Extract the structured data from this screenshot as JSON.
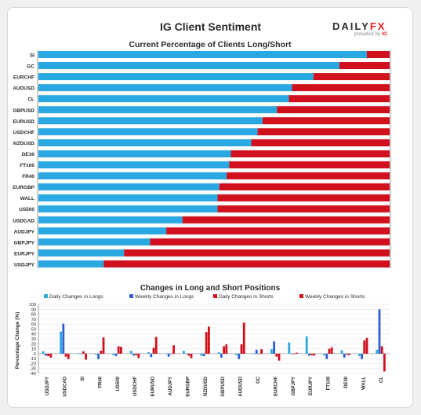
{
  "header": {
    "title": "IG Client Sentiment",
    "logo_text_a": "DAILY",
    "logo_text_b": "FX",
    "logo_sub": "provided by",
    "logo_sub_brand": "IG"
  },
  "colors": {
    "long": "#2aa8e2",
    "short": "#d0101c",
    "weekly_long": "#2e5ed6"
  },
  "chart_data": [
    {
      "type": "bar",
      "orientation": "horizontal",
      "stacked": true,
      "title": "Current Percentage of Clients Long/Short",
      "categories": [
        "SI",
        "GC",
        "EURCHF",
        "AUDUSD",
        "CL",
        "GBPUSD",
        "EURUSD",
        "USDCHF",
        "NZDUSD",
        "DE30",
        "FT100",
        "FR40",
        "EURGBP",
        "WALL",
        "US500",
        "USDCAD",
        "AUDJPY",
        "GBPJPY",
        "EURJPY",
        "USDJPY"
      ],
      "series": [
        {
          "values": [
            93.5,
            85.7,
            78.3,
            72.2,
            71.3,
            67.9,
            63.8,
            62.4,
            60.6,
            54.8,
            54.3,
            53.6,
            51.5,
            51.0,
            51.0,
            41.0,
            36.4,
            31.8,
            24.4,
            18.6
          ]
        },
        {
          "values": [
            6.5,
            14.3,
            21.7,
            27.8,
            28.7,
            32.1,
            36.2,
            37.6,
            39.4,
            45.2,
            45.7,
            46.4,
            48.5,
            49.0,
            49.0,
            59.0,
            63.6,
            68.2,
            75.6,
            81.4
          ]
        }
      ],
      "xlim": [
        0,
        100
      ]
    },
    {
      "type": "bar",
      "title": "Changes in Long and Short Positions",
      "ylabel": "Percentage Change (%)",
      "ylim": [
        -40,
        100
      ],
      "yticks": [
        -40,
        -30,
        -20,
        -10,
        0,
        10,
        20,
        30,
        40,
        50,
        60,
        70,
        80,
        90,
        100
      ],
      "legend_position": "top",
      "categories": [
        "USDJPY",
        "USDCAD",
        "SI",
        "FR40",
        "US500",
        "USDCHF",
        "EURUSD",
        "AUDJPY",
        "EURGBP",
        "NZDUSD",
        "GBPUSD",
        "AUDUSD",
        "GC",
        "EURCHF",
        "GBPJPY",
        "EURJPY",
        "FT100",
        "DE30",
        "WALL",
        "CL"
      ],
      "series": [
        {
          "name": "Daily Changes in Longs",
          "values": [
            5,
            45,
            1,
            -2,
            -3,
            6,
            3,
            -1,
            6,
            -4,
            3,
            -3,
            0,
            9,
            23,
            35,
            -3,
            7,
            -5,
            8
          ]
        },
        {
          "name": "Weekly Changes in Longs",
          "values": [
            -4,
            61,
            -1,
            -11,
            -5,
            -4,
            -7,
            -6,
            -1,
            -5,
            -8,
            -11,
            8,
            25,
            0,
            -4,
            -11,
            -8,
            -11,
            90
          ]
        },
        {
          "name": "Daily Changes in Shorts",
          "values": [
            -5,
            -6,
            5,
            6,
            15,
            -3,
            12,
            -1,
            -4,
            44,
            15,
            19,
            0,
            -6,
            -1,
            -3,
            10,
            -2,
            27,
            15
          ]
        },
        {
          "name": "Weekly Changes in Shorts",
          "values": [
            -8,
            -11,
            -12,
            33,
            14,
            -9,
            34,
            17,
            -9,
            55,
            19,
            63,
            9,
            -14,
            2,
            -4,
            13,
            -3,
            32,
            -36
          ]
        }
      ]
    }
  ]
}
